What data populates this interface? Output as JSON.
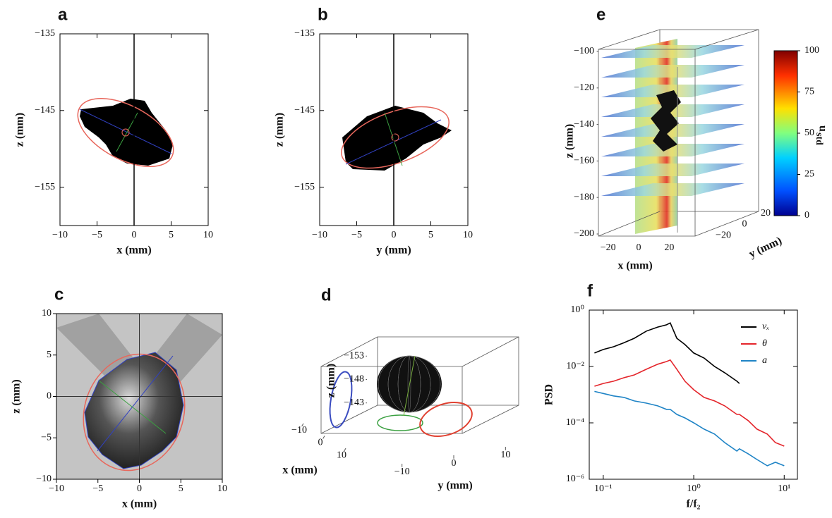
{
  "chart_data": [
    {
      "type": "mask",
      "panel_label": "a",
      "x_label": "x (mm)",
      "y_label": "z (mm)",
      "xlim": [
        -10,
        10
      ],
      "ylim": [
        -160,
        -135
      ],
      "xticks": [
        {
          "value": -10,
          "label": "−10"
        },
        {
          "value": -5,
          "label": "−5"
        },
        0,
        5,
        10
      ],
      "yticks": [
        {
          "value": -135,
          "label": "−135"
        },
        {
          "value": -145,
          "label": "−145"
        },
        {
          "value": -155,
          "label": "−155"
        }
      ]
    },
    {
      "type": "mask",
      "panel_label": "b",
      "x_label": "y (mm)",
      "y_label": "z (mm)",
      "xlim": [
        -10,
        10
      ],
      "ylim": [
        -160,
        -135
      ],
      "xticks": [
        {
          "value": -10,
          "label": "−10"
        },
        {
          "value": -5,
          "label": "−5"
        },
        0,
        5,
        10
      ],
      "yticks": [
        {
          "value": -135,
          "label": "−135"
        },
        {
          "value": -145,
          "label": "−145"
        },
        {
          "value": -155,
          "label": "−155"
        }
      ]
    },
    {
      "type": "image",
      "panel_label": "c",
      "x_label": "x (mm)",
      "y_label": "z (mm)",
      "xlim": [
        -10,
        10
      ],
      "ylim": [
        -10,
        10
      ],
      "xticks": [
        {
          "value": -10,
          "label": "−10"
        },
        {
          "value": -5,
          "label": "−5"
        },
        0,
        5,
        10
      ],
      "yticks": [
        {
          "value": -10,
          "label": "−10"
        },
        {
          "value": -5,
          "label": "−5"
        },
        0,
        5,
        10
      ]
    },
    {
      "type": "3d",
      "panel_label": "d",
      "x_label": "x (mm)",
      "y_label": "y (mm)",
      "z_label": "z (mm)",
      "xlim": [
        -15,
        15
      ],
      "ylim": [
        -15,
        15
      ],
      "zlim": [
        -141,
        -155
      ],
      "xticks": [
        {
          "value": -10,
          "label": "−10"
        },
        0,
        10
      ],
      "yticks": [
        {
          "value": -10,
          "label": "−10"
        },
        0,
        10
      ],
      "zticks": [
        {
          "value": -153,
          "label": "−153"
        },
        {
          "value": -148,
          "label": "−148"
        },
        {
          "value": -143,
          "label": "−143"
        }
      ]
    },
    {
      "type": "volume",
      "panel_label": "e",
      "x_label": "x (mm)",
      "y_label": "y (mm)",
      "z_label": "z (mm)",
      "xlim": [
        -30,
        30
      ],
      "ylim": [
        -30,
        30
      ],
      "zlim": [
        -200,
        -100
      ],
      "xticks": [
        {
          "value": -20,
          "label": "−20"
        },
        0,
        20
      ],
      "yticks": [
        {
          "value": -20,
          "label": "−20"
        },
        0,
        20
      ],
      "zticks": [
        {
          "value": -100,
          "label": "−100"
        },
        {
          "value": -120,
          "label": "−120"
        },
        {
          "value": -140,
          "label": "−140"
        },
        {
          "value": -160,
          "label": "−160"
        },
        {
          "value": -180,
          "label": "−180"
        },
        {
          "value": -200,
          "label": "−200"
        }
      ],
      "colorbar_lim": [
        0,
        100
      ],
      "colorbar_ticks": [
        0,
        25,
        50,
        75,
        100
      ],
      "colorbar_label": "u",
      "colorbar_label_sub": "std"
    },
    {
      "type": "line",
      "panel_label": "f",
      "x_label": "f/f₂",
      "y_label": "PSD",
      "log_x": true,
      "log_y": true,
      "legend": "upper right",
      "xlim": [
        0.07,
        14
      ],
      "ylim": [
        1e-06,
        1
      ],
      "xticks": [
        {
          "value": 0.1,
          "label": "10⁻¹"
        },
        {
          "value": 1,
          "label": "10⁰"
        },
        {
          "value": 10,
          "label": "10¹"
        }
      ],
      "yticks": [
        {
          "value": 1e-06,
          "label": "10⁻⁶"
        },
        {
          "value": 0.0001,
          "label": "10⁻⁴"
        },
        {
          "value": 0.01,
          "label": "10⁻²"
        },
        {
          "value": 1,
          "label": "10⁰"
        }
      ],
      "x": [
        0.08,
        0.1,
        0.13,
        0.17,
        0.22,
        0.3,
        0.4,
        0.5,
        0.55,
        0.65,
        0.8,
        1,
        1.3,
        1.7,
        2.2,
        3,
        3.2,
        4,
        5,
        6.5,
        8,
        10
      ],
      "series": [
        {
          "name": "vₓ",
          "color": "#000000",
          "values": [
            0.03,
            0.04,
            0.05,
            0.07,
            0.1,
            0.18,
            0.25,
            0.3,
            0.35,
            0.1,
            0.06,
            0.03,
            0.02,
            0.01,
            0.006,
            0.003,
            0.0025,
            null,
            null,
            null,
            null,
            null
          ]
        },
        {
          "name": "θ",
          "color": "#e4252b",
          "values": [
            0.002,
            0.0025,
            0.003,
            0.004,
            0.005,
            0.008,
            0.012,
            0.015,
            0.017,
            0.008,
            0.003,
            0.0015,
            0.0008,
            0.0006,
            0.0004,
            0.0002,
            0.0002,
            0.00012,
            6e-05,
            4e-05,
            2e-05,
            1.5e-05
          ]
        },
        {
          "name": "a",
          "color": "#1f84c6",
          "values": [
            0.0013,
            0.0011,
            0.0009,
            0.0008,
            0.0006,
            0.0005,
            0.0004,
            0.0003,
            0.0003,
            0.0002,
            0.00015,
            0.0001,
            6e-05,
            4e-05,
            2e-05,
            1e-05,
            1.2e-05,
            8e-06,
            5e-06,
            3e-06,
            4e-06,
            3e-06
          ]
        }
      ]
    }
  ]
}
